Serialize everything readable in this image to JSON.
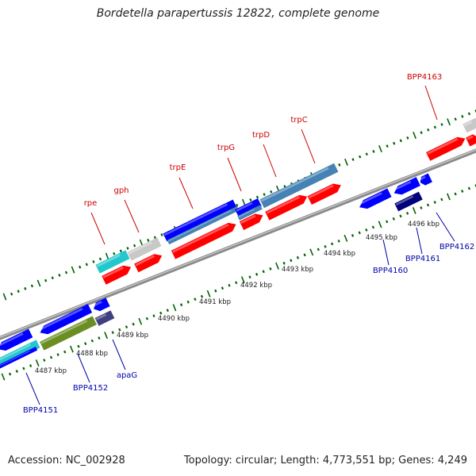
{
  "title": "Bordetella parapertussis 12822, complete genome",
  "accession": "Accession: NC_002928",
  "summary": "Topology: circular; Length: 4,773,551 bp; Genes: 4,249",
  "colors": {
    "forward": "#ff0000",
    "reverse": "#0000ff",
    "grey": "#c8c8c8",
    "cyan": "#22c8cc",
    "steel": "#4682b4",
    "olive": "#6b8e23",
    "navy": "#00007a",
    "slate": "#404080",
    "tick": "#006400",
    "backbone": "#8a8a8a"
  },
  "ruler": [
    {
      "text": "4487 kbp",
      "pos": 0
    },
    {
      "text": "4488 kbp",
      "pos": 1
    },
    {
      "text": "4489 kbp",
      "pos": 2
    },
    {
      "text": "4490 kbp",
      "pos": 3
    },
    {
      "text": "4491 kbp",
      "pos": 4
    },
    {
      "text": "4492 kbp",
      "pos": 5
    },
    {
      "text": "4493 kbp",
      "pos": 6
    },
    {
      "text": "4494 kbp",
      "pos": 7
    },
    {
      "text": "4495 kbp",
      "pos": 8
    },
    {
      "text": "4496 kbp",
      "pos": 9
    }
  ],
  "labels": [
    {
      "name": "rpe",
      "strand": "forward"
    },
    {
      "name": "gph",
      "strand": "forward"
    },
    {
      "name": "trpE",
      "strand": "forward"
    },
    {
      "name": "trpG",
      "strand": "forward"
    },
    {
      "name": "trpD",
      "strand": "forward"
    },
    {
      "name": "trpC",
      "strand": "forward"
    },
    {
      "name": "BPP4163",
      "strand": "forward"
    },
    {
      "name": "BPP4151",
      "strand": "reverse"
    },
    {
      "name": "BPP4152",
      "strand": "reverse"
    },
    {
      "name": "apaG",
      "strand": "reverse"
    },
    {
      "name": "BPP4160",
      "strand": "reverse"
    },
    {
      "name": "BPP4161",
      "strand": "reverse"
    },
    {
      "name": "BPP4162",
      "strand": "reverse"
    }
  ]
}
